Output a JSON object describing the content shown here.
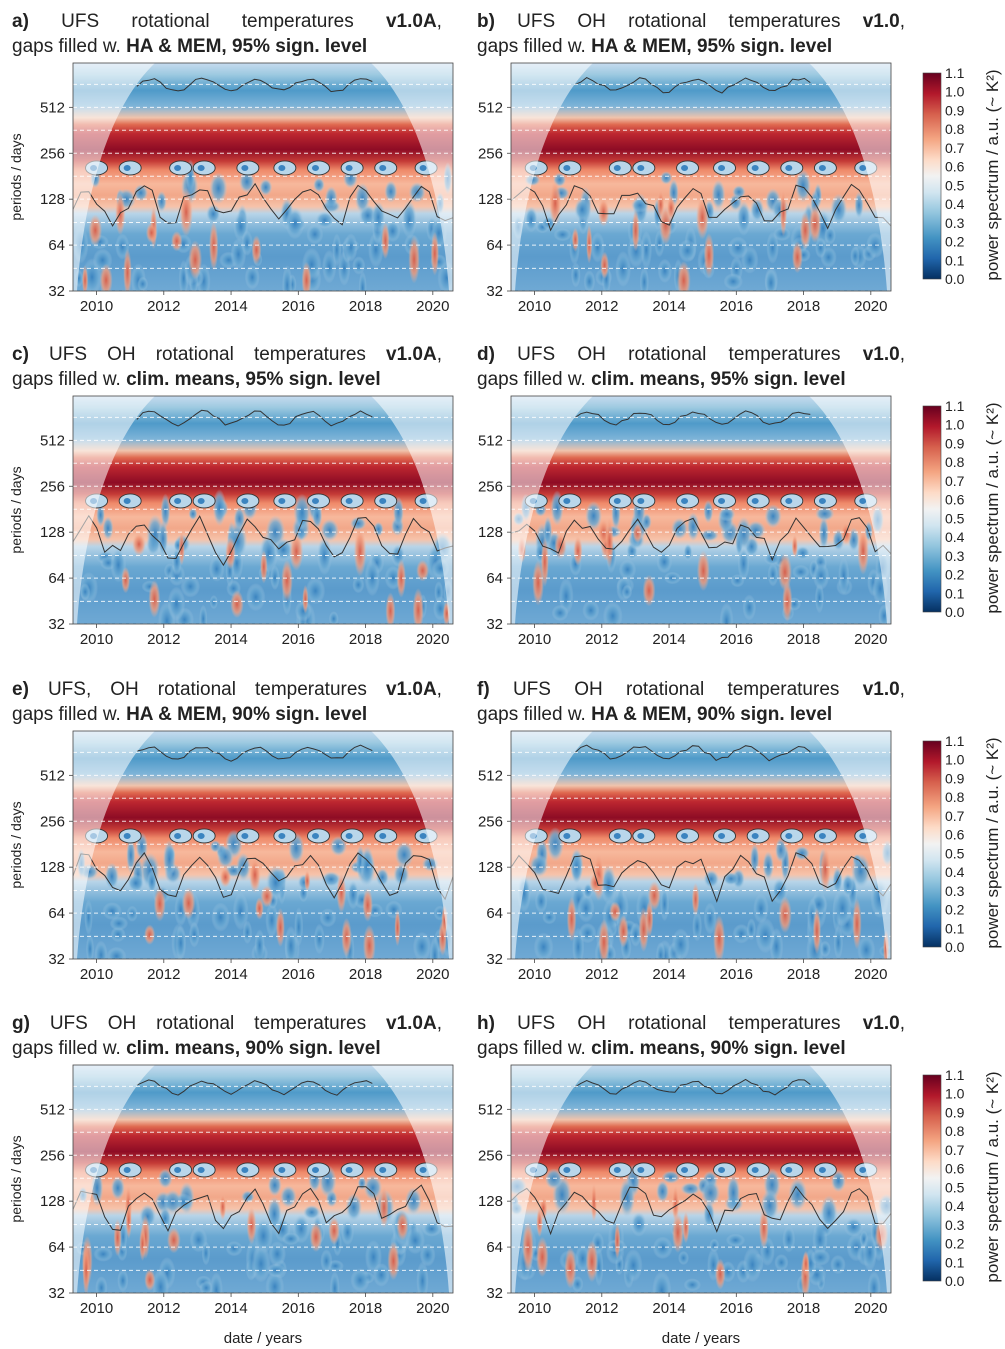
{
  "chart_data": [
    {
      "id": "a",
      "type": "heatmap",
      "label": "a)",
      "title_line1": [
        "UFS",
        "rotational",
        "temperatures"
      ],
      "version": "v1.0A",
      "title_line2_pre": "gaps filled w.",
      "gap_method": "HA & MEM",
      "sig_level": "95% sign. level",
      "ylabel": "periods / days",
      "xlabel": "",
      "x_ticks": [
        "2010",
        "2012",
        "2014",
        "2016",
        "2018",
        "2020"
      ],
      "y_ticks": [
        "512",
        "256",
        "128",
        "64",
        "32"
      ]
    },
    {
      "id": "b",
      "type": "heatmap",
      "label": "b)",
      "title_line1": [
        "UFS",
        "OH",
        "rotational",
        "temperatures"
      ],
      "version": "v1.0",
      "title_line2_pre": "gaps filled w.",
      "gap_method": "HA & MEM",
      "sig_level": "95% sign. level",
      "ylabel": "",
      "xlabel": "",
      "x_ticks": [
        "2010",
        "2012",
        "2014",
        "2016",
        "2018",
        "2020"
      ],
      "y_ticks": [
        "512",
        "256",
        "128",
        "64",
        "32"
      ]
    },
    {
      "id": "c",
      "type": "heatmap",
      "label": "c)",
      "title_line1": [
        "UFS",
        "OH",
        "rotational",
        "temperatures"
      ],
      "version": "v1.0A",
      "title_line2_pre": "gaps filled w.",
      "gap_method": "clim. means",
      "sig_level": "95% sign. level",
      "ylabel": "periods / days",
      "xlabel": "",
      "x_ticks": [
        "2010",
        "2012",
        "2014",
        "2016",
        "2018",
        "2020"
      ],
      "y_ticks": [
        "512",
        "256",
        "128",
        "64",
        "32"
      ]
    },
    {
      "id": "d",
      "type": "heatmap",
      "label": "d)",
      "title_line1": [
        "UFS",
        "OH",
        "rotational",
        "temperatures"
      ],
      "version": "v1.0",
      "title_line2_pre": "gaps filled w.",
      "gap_method": "clim. means",
      "sig_level": "95% sign. level",
      "ylabel": "",
      "xlabel": "",
      "x_ticks": [
        "2010",
        "2012",
        "2014",
        "2016",
        "2018",
        "2020"
      ],
      "y_ticks": [
        "512",
        "256",
        "128",
        "64",
        "32"
      ]
    },
    {
      "id": "e",
      "type": "heatmap",
      "label": "e)",
      "title_line1": [
        "UFS,",
        "OH",
        "rotational",
        "temperatures"
      ],
      "version": "v1.0A",
      "title_line2_pre": "gaps filled w.",
      "gap_method": "HA & MEM",
      "sig_level": "90% sign. level",
      "ylabel": "periods / days",
      "xlabel": "",
      "x_ticks": [
        "2010",
        "2012",
        "2014",
        "2016",
        "2018",
        "2020"
      ],
      "y_ticks": [
        "512",
        "256",
        "128",
        "64",
        "32"
      ]
    },
    {
      "id": "f",
      "type": "heatmap",
      "label": "f)",
      "title_line1": [
        "UFS",
        "OH",
        "rotational",
        "temperatures"
      ],
      "version": "v1.0",
      "title_line2_pre": "gaps filled w.",
      "gap_method": "HA & MEM",
      "sig_level": "90% sign. level",
      "ylabel": "",
      "xlabel": "",
      "x_ticks": [
        "2010",
        "2012",
        "2014",
        "2016",
        "2018",
        "2020"
      ],
      "y_ticks": [
        "512",
        "256",
        "128",
        "64",
        "32"
      ]
    },
    {
      "id": "g",
      "type": "heatmap",
      "label": "g)",
      "title_line1": [
        "UFS",
        "OH",
        "rotational",
        "temperatures"
      ],
      "version": "v1.0A",
      "title_line2_pre": "gaps filled w.",
      "gap_method": "clim. means",
      "sig_level": "90% sign. level",
      "ylabel": "periods / days",
      "xlabel": "date / years",
      "x_ticks": [
        "2010",
        "2012",
        "2014",
        "2016",
        "2018",
        "2020"
      ],
      "y_ticks": [
        "512",
        "256",
        "128",
        "64",
        "32"
      ]
    },
    {
      "id": "h",
      "type": "heatmap",
      "label": "h)",
      "title_line1": [
        "UFS",
        "OH",
        "rotational",
        "temperatures"
      ],
      "version": "v1.0",
      "title_line2_pre": "gaps filled w.",
      "gap_method": "clim. means",
      "sig_level": "90% sign. level",
      "ylabel": "",
      "xlabel": "date / years",
      "x_ticks": [
        "2010",
        "2012",
        "2014",
        "2016",
        "2018",
        "2020"
      ],
      "y_ticks": [
        "512",
        "256",
        "128",
        "64",
        "32"
      ]
    }
  ],
  "colorbar": {
    "label": "power spectrum / a.u. (~ K²)",
    "ticks": [
      "1.1",
      "1.0",
      "0.9",
      "0.8",
      "0.7",
      "0.6",
      "0.5",
      "0.4",
      "0.3",
      "0.2",
      "0.1",
      "0.0"
    ],
    "range": [
      0.0,
      1.1
    ],
    "colors": [
      "#053061",
      "#2166ac",
      "#4393c3",
      "#92c5de",
      "#d1e5f0",
      "#f7f7f7",
      "#fddbc7",
      "#f4a582",
      "#d6604d",
      "#b2182b",
      "#67001f"
    ]
  },
  "x_range": [
    2009.3,
    2020.6
  ],
  "y_range_days": [
    32,
    1000
  ],
  "y_scale": "log2",
  "annual_period_days": 365
}
